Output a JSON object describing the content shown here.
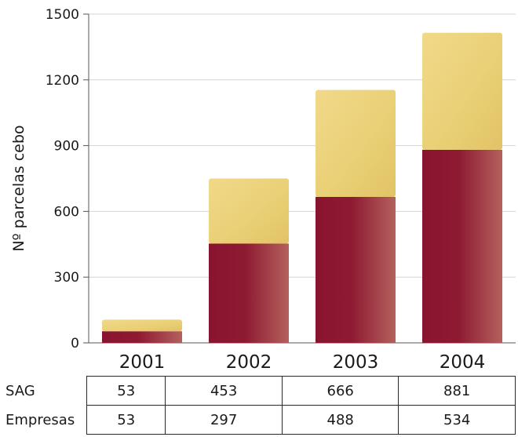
{
  "chart_data": {
    "type": "bar",
    "stacked": true,
    "categories": [
      "2001",
      "2002",
      "2003",
      "2004"
    ],
    "series": [
      {
        "name": "SAG",
        "values": [
          53,
          453,
          666,
          881
        ],
        "color": "#8e1a30"
      },
      {
        "name": "Empresas",
        "values": [
          53,
          297,
          488,
          534
        ],
        "color": "#ead27a"
      }
    ],
    "ylabel": "Nº parcelas cebo",
    "xlabel": "",
    "ylim": [
      0,
      1500
    ],
    "yticks": [
      0,
      300,
      600,
      900,
      1200,
      1500
    ],
    "grid": true
  }
}
